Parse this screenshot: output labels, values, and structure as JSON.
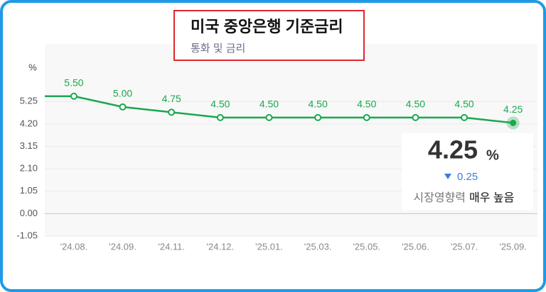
{
  "chart_data": {
    "type": "line",
    "title": "미국 중앙은행 기준금리",
    "subtitle": "통화 및 금리",
    "y_label": "%",
    "categories": [
      "'24.08.",
      "'24.09.",
      "'24.11.",
      "'24.12.",
      "'25.01.",
      "'25.03.",
      "'25.05.",
      "'25.06.",
      "'25.07.",
      "'25.09."
    ],
    "values": [
      5.5,
      5.0,
      4.75,
      4.5,
      4.5,
      4.5,
      4.5,
      4.5,
      4.5,
      4.25
    ],
    "value_labels": [
      "5.50",
      "5.00",
      "4.75",
      "4.50",
      "4.50",
      "4.50",
      "4.50",
      "4.50",
      "4.50",
      "4.25"
    ],
    "color": "#1aa84f",
    "baseline_color": "#a9cdf0",
    "ylim": [
      -1.05,
      7.95
    ],
    "yticks": [
      -1.05,
      {
        "value": 0,
        "label": "0.00"
      },
      1.05,
      {
        "value": 2.1,
        "label": "2.10"
      },
      3.15,
      {
        "value": 4.2,
        "label": "4.20"
      },
      5.25
    ],
    "grid": true,
    "summary": {
      "value": 4.25,
      "unit": "%",
      "change": 0.25,
      "impact_label": "시장영향력",
      "impact_value": "매우 높음"
    }
  }
}
